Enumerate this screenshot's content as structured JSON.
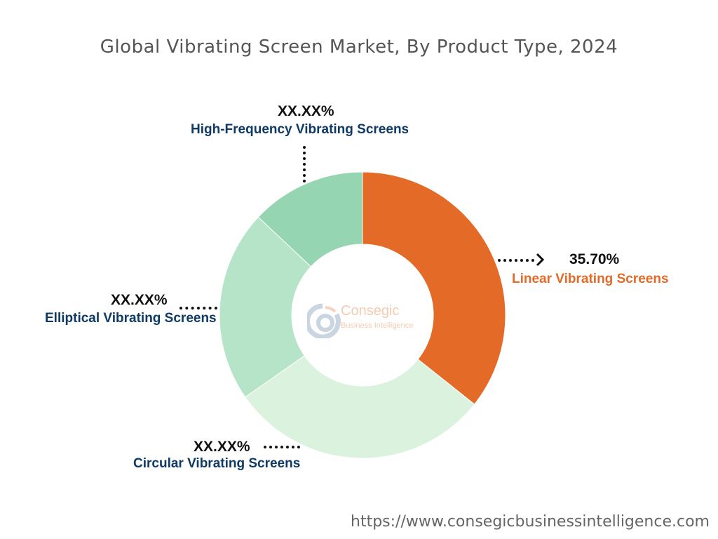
{
  "chart_data": {
    "type": "pie",
    "style": "donut",
    "title": "Global Vibrating Screen Market, By Product Type, 2024",
    "slices": [
      {
        "name": "Linear Vibrating Screens",
        "value": 35.7,
        "label": "35.70%",
        "color": "#E36A27",
        "name_color": "#E36A27"
      },
      {
        "name": "Circular Vibrating Screens",
        "value": 29.6,
        "label": "XX.XX%",
        "color": "#DAF2DE",
        "name_color": "#0E3A63"
      },
      {
        "name": "Elliptical Vibrating Screens",
        "value": 21.7,
        "label": "XX.XX%",
        "color": "#B5E4C9",
        "name_color": "#0E3A63"
      },
      {
        "name": "High-Frequency Vibrating Screens",
        "value": 13.0,
        "label": "XX.XX%",
        "color": "#95D5B2",
        "name_color": "#0E3A63"
      }
    ],
    "legend": "none"
  },
  "logo": {
    "text": "Consegic",
    "subtext": "Business Intelligence"
  },
  "footer": {
    "url": "https://www.consegicbusinessintelligence.com"
  }
}
